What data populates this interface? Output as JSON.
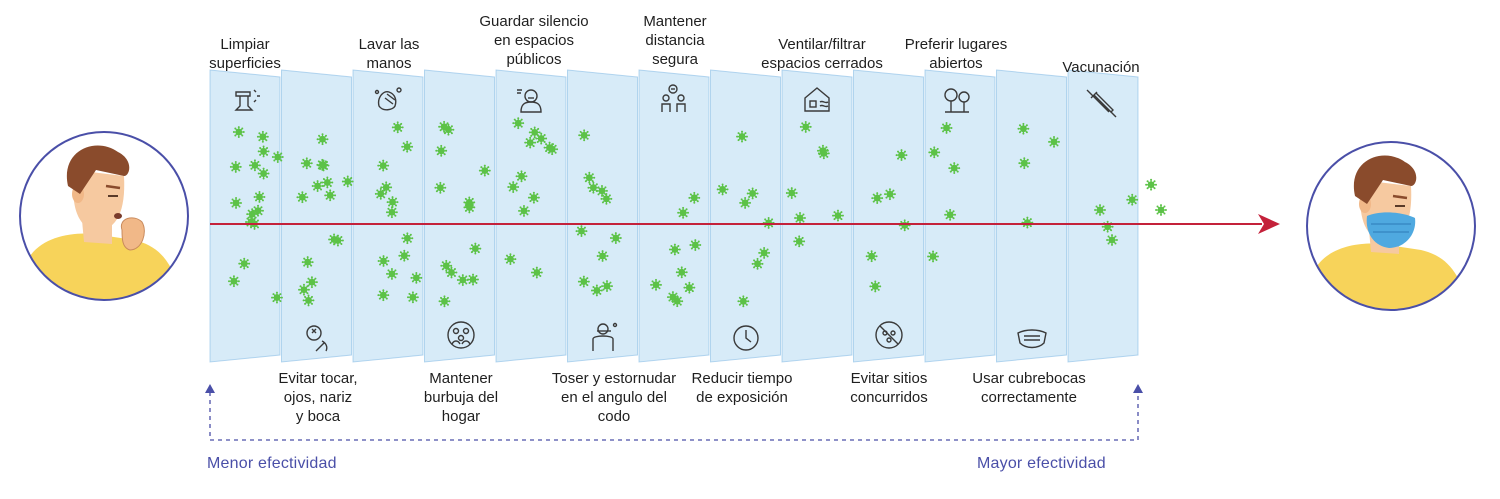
{
  "top_labels": [
    {
      "id": "limpiar-superficies",
      "text": "Limpiar\nsuperficies",
      "icon": "cleaning-spray-icon"
    },
    {
      "id": "lavar-manos",
      "text": "Lavar las\nmanos",
      "icon": "hand-washing-icon"
    },
    {
      "id": "guardar-silencio",
      "text": "Guardar silencio\nen espacios\npúblicos",
      "icon": "silent-person-icon"
    },
    {
      "id": "mantener-distancia",
      "text": "Mantener\ndistancia\nsegura",
      "icon": "social-distance-icon"
    },
    {
      "id": "ventilar",
      "text": "Ventilar/filtrar\nespacios cerrados",
      "icon": "house-ventilation-icon"
    },
    {
      "id": "lugares-abiertos",
      "text": "Preferir lugares\nabiertos",
      "icon": "trees-outdoor-icon"
    },
    {
      "id": "vacunacion",
      "text": "Vacunación",
      "icon": "syringe-icon"
    }
  ],
  "bottom_labels": [
    {
      "id": "evitar-tocar",
      "text": "Evitar tocar,\nojos, nariz\ny boca",
      "icon": "face-touch-icon"
    },
    {
      "id": "burbuja-hogar",
      "text": "Mantener\nburbuja del\nhogar",
      "icon": "household-bubble-icon"
    },
    {
      "id": "toser-codo",
      "text": "Toser y estornudar\nen el angulo del\ncodo",
      "icon": "cough-elbow-icon"
    },
    {
      "id": "reducir-tiempo",
      "text": "Reducir tiempo\nde exposición",
      "icon": "clock-icon"
    },
    {
      "id": "evitar-sitios",
      "text": "Evitar sitios\nconcurridos",
      "icon": "no-crowd-icon"
    },
    {
      "id": "cubrebocas",
      "text": "Usar cubrebocas\ncorrectamente",
      "icon": "face-mask-icon"
    }
  ],
  "effectiveness": {
    "low": "Menor efectividad",
    "high": "Mayor efectividad"
  },
  "colors": {
    "layer_fill": "#9fd0ee",
    "layer_edge": "#7fb8e3",
    "arrow": "#c4213a",
    "virus": "#5cc247",
    "skin": "#f6c9a0",
    "shirt": "#f7d35a",
    "hair": "#8a4b2c",
    "mask": "#4fa9e0",
    "circle": "#4a4fa8",
    "dashed": "#4a4fa8"
  },
  "people": {
    "left": "coughing-person",
    "right": "masked-person"
  }
}
